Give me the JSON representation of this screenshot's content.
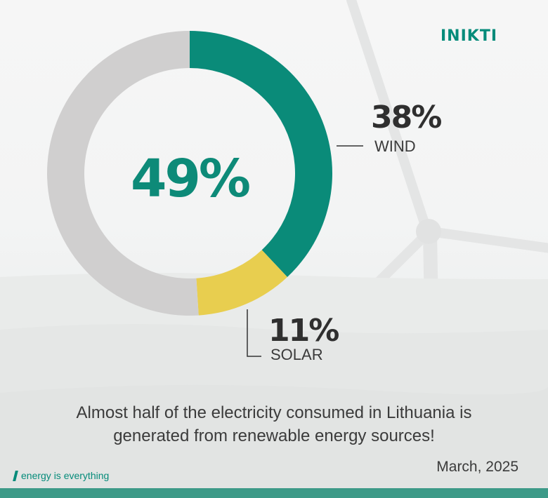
{
  "brand": {
    "logo_text": "INIKTI",
    "tagline": "energy is everything",
    "accent_color": "#058b7a"
  },
  "chart_data": {
    "type": "pie",
    "variant": "donut",
    "center_label": "49%",
    "slices": [
      {
        "name": "WIND",
        "value": 38,
        "label": "38%",
        "color": "#0a8b79"
      },
      {
        "name": "SOLAR",
        "value": 11,
        "label": "11%",
        "color": "#e8ce4f"
      },
      {
        "value": 51,
        "color": "#d0cfcf"
      }
    ]
  },
  "caption": {
    "line1": "Almost half of the electricity consumed in Lithuania is",
    "line2": "generated from renewable energy sources!"
  },
  "date": "March, 2025",
  "colors": {
    "bottom_bar": "#3d9a88"
  }
}
